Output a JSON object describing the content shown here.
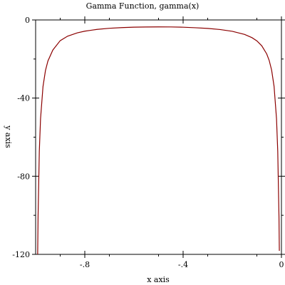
{
  "chart_data": {
    "type": "line",
    "title": "Gamma Function, gamma(x)",
    "xlabel": "x axis",
    "ylabel": "y axis",
    "xlim": [
      -1,
      0
    ],
    "ylim": [
      -120,
      0
    ],
    "x_ticks": [
      {
        "value": -0.8,
        "label": "-.8"
      },
      {
        "value": -0.4,
        "label": "-.4"
      },
      {
        "value": 0,
        "label": "0"
      }
    ],
    "y_ticks": [
      {
        "value": 0,
        "label": "0"
      },
      {
        "value": -40,
        "label": "-40"
      },
      {
        "value": -80,
        "label": "-80"
      },
      {
        "value": -120,
        "label": "-120"
      }
    ],
    "grid": false,
    "series": [
      {
        "function": "gamma(x)",
        "color": "#8b0000",
        "x": [
          -0.9917,
          -0.99,
          -0.985,
          -0.98,
          -0.97,
          -0.96,
          -0.95,
          -0.93,
          -0.9,
          -0.87,
          -0.83,
          -0.8,
          -0.75,
          -0.7,
          -0.65,
          -0.6,
          -0.55,
          -0.5,
          -0.45,
          -0.4,
          -0.35,
          -0.3,
          -0.25,
          -0.2,
          -0.15,
          -0.12,
          -0.1,
          -0.08,
          -0.06,
          -0.05,
          -0.04,
          -0.03,
          -0.02,
          -0.015,
          -0.01,
          -0.0085
        ],
        "y": [
          -120.5,
          -100.3,
          -67.2,
          -50.6,
          -34.1,
          -25.9,
          -21.0,
          -15.4,
          -10.6,
          -8.3,
          -6.6,
          -5.74,
          -4.83,
          -4.27,
          -3.91,
          -3.7,
          -3.59,
          -3.545,
          -3.58,
          -3.72,
          -3.99,
          -4.33,
          -4.9,
          -5.82,
          -7.4,
          -9.05,
          -10.69,
          -13.23,
          -17.37,
          -20.66,
          -25.63,
          -33.96,
          -50.6,
          -67.24,
          -100.59,
          -118.2
        ]
      }
    ]
  }
}
